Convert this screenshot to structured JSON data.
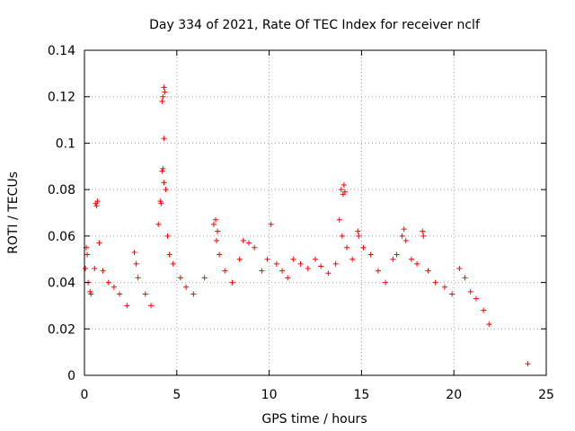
{
  "chart_data": {
    "type": "scatter",
    "title": "Day 334 of 2021, Rate Of TEC Index for receiver nclf",
    "xlabel": "GPS time / hours",
    "ylabel": "ROTI / TECUs",
    "xlim": [
      0,
      25
    ],
    "ylim": [
      0,
      0.14
    ],
    "xticks": [
      0,
      5,
      10,
      15,
      20,
      25
    ],
    "xtick_labels": [
      "0",
      "5",
      "10",
      "15",
      "20",
      "25"
    ],
    "yticks": [
      0,
      0.02,
      0.04,
      0.06,
      0.08,
      0.1,
      0.12,
      0.14
    ],
    "ytick_labels": [
      "0",
      "0.02",
      "0.04",
      "0.06",
      "0.08",
      "0.1",
      "0.12",
      "0.14"
    ],
    "grid": true,
    "marker": "+",
    "color": "#ff0000",
    "series": [
      {
        "name": "ROTI",
        "points": [
          [
            0.05,
            0.046
          ],
          [
            0.1,
            0.055
          ],
          [
            0.15,
            0.052
          ],
          [
            0.2,
            0.04
          ],
          [
            0.3,
            0.036
          ],
          [
            0.35,
            0.035
          ],
          [
            0.6,
            0.074
          ],
          [
            0.65,
            0.073
          ],
          [
            0.7,
            0.075
          ],
          [
            0.8,
            0.057
          ],
          [
            0.55,
            0.046
          ],
          [
            1.0,
            0.045
          ],
          [
            1.3,
            0.04
          ],
          [
            1.6,
            0.038
          ],
          [
            1.9,
            0.035
          ],
          [
            2.3,
            0.03
          ],
          [
            2.7,
            0.053
          ],
          [
            2.8,
            0.048
          ],
          [
            2.9,
            0.042
          ],
          [
            3.3,
            0.035
          ],
          [
            3.6,
            0.03
          ],
          [
            4.0,
            0.065
          ],
          [
            4.1,
            0.075
          ],
          [
            4.15,
            0.074
          ],
          [
            4.2,
            0.088
          ],
          [
            4.25,
            0.089
          ],
          [
            4.3,
            0.083
          ],
          [
            4.2,
            0.118
          ],
          [
            4.25,
            0.12
          ],
          [
            4.3,
            0.124
          ],
          [
            4.35,
            0.122
          ],
          [
            4.3,
            0.102
          ],
          [
            4.4,
            0.08
          ],
          [
            4.5,
            0.06
          ],
          [
            4.6,
            0.052
          ],
          [
            4.8,
            0.048
          ],
          [
            5.2,
            0.042
          ],
          [
            5.5,
            0.038
          ],
          [
            5.9,
            0.035
          ],
          [
            6.5,
            0.042
          ],
          [
            7.0,
            0.065
          ],
          [
            7.1,
            0.067
          ],
          [
            7.2,
            0.062
          ],
          [
            7.15,
            0.058
          ],
          [
            7.3,
            0.052
          ],
          [
            7.6,
            0.045
          ],
          [
            8.0,
            0.04
          ],
          [
            8.4,
            0.05
          ],
          [
            8.6,
            0.058
          ],
          [
            8.9,
            0.057
          ],
          [
            9.2,
            0.055
          ],
          [
            9.6,
            0.045
          ],
          [
            9.9,
            0.05
          ],
          [
            10.1,
            0.065
          ],
          [
            10.4,
            0.048
          ],
          [
            10.7,
            0.045
          ],
          [
            11.0,
            0.042
          ],
          [
            11.3,
            0.05
          ],
          [
            11.7,
            0.048
          ],
          [
            12.1,
            0.046
          ],
          [
            12.5,
            0.05
          ],
          [
            12.8,
            0.047
          ],
          [
            13.2,
            0.044
          ],
          [
            13.6,
            0.048
          ],
          [
            13.8,
            0.067
          ],
          [
            13.9,
            0.08
          ],
          [
            14.0,
            0.078
          ],
          [
            14.05,
            0.082
          ],
          [
            14.1,
            0.079
          ],
          [
            13.95,
            0.06
          ],
          [
            14.2,
            0.055
          ],
          [
            14.5,
            0.05
          ],
          [
            14.8,
            0.062
          ],
          [
            14.85,
            0.06
          ],
          [
            15.1,
            0.055
          ],
          [
            15.5,
            0.052
          ],
          [
            15.9,
            0.045
          ],
          [
            16.3,
            0.04
          ],
          [
            16.7,
            0.05
          ],
          [
            16.9,
            0.052
          ],
          [
            17.2,
            0.06
          ],
          [
            17.3,
            0.063
          ],
          [
            17.4,
            0.058
          ],
          [
            17.7,
            0.05
          ],
          [
            18.0,
            0.048
          ],
          [
            18.3,
            0.062
          ],
          [
            18.35,
            0.06
          ],
          [
            18.6,
            0.045
          ],
          [
            19.0,
            0.04
          ],
          [
            19.5,
            0.038
          ],
          [
            19.9,
            0.035
          ],
          [
            20.3,
            0.046
          ],
          [
            20.6,
            0.042
          ],
          [
            20.9,
            0.036
          ],
          [
            21.2,
            0.033
          ],
          [
            21.6,
            0.028
          ],
          [
            21.9,
            0.022
          ],
          [
            24.0,
            0.005
          ]
        ]
      }
    ]
  }
}
